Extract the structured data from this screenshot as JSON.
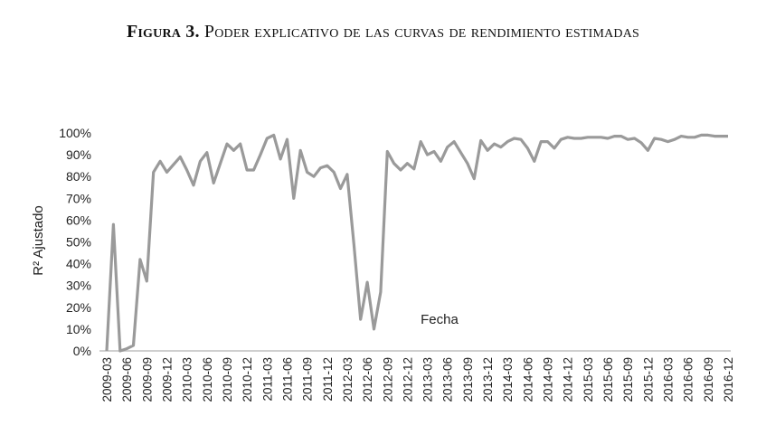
{
  "chart_data": {
    "type": "line",
    "title_prefix": "Figura 3.",
    "title": "Poder explicativo de las curvas de rendimiento estimadas",
    "xlabel": "Fecha",
    "ylabel": "R² Ajustado",
    "ylim": [
      0,
      100
    ],
    "y_ticks": [
      "0%",
      "10%",
      "20%",
      "30%",
      "40%",
      "50%",
      "60%",
      "70%",
      "80%",
      "90%",
      "100%"
    ],
    "x_start": "2009-03",
    "x_frequency": "monthly",
    "x_tick_labels": [
      "2009-03",
      "2009-06",
      "2009-09",
      "2009-12",
      "2010-03",
      "2010-06",
      "2010-09",
      "2010-12",
      "2011-03",
      "2011-06",
      "2011-09",
      "2011-12",
      "2012-03",
      "2012-06",
      "2012-09",
      "2012-12",
      "2013-03",
      "2013-06",
      "2013-09",
      "2013-12",
      "2014-03",
      "2014-06",
      "2014-09",
      "2014-12",
      "2015-03",
      "2015-06",
      "2015-09",
      "2015-12",
      "2016-03",
      "2016-06",
      "2016-09",
      "2016-12"
    ],
    "grid": false,
    "legend": "none",
    "series": [
      {
        "name": "R² Ajustado",
        "color": "#9a9a9a",
        "values": [
          0,
          58,
          0,
          1,
          2.5,
          42,
          32,
          82,
          87,
          82,
          85.5,
          89,
          83,
          76,
          87,
          91,
          77,
          86,
          95,
          92,
          95,
          83,
          83,
          90,
          97.5,
          99,
          88,
          97,
          70,
          92,
          82,
          80,
          84,
          85,
          82,
          74.5,
          81,
          49,
          14.5,
          31.5,
          10,
          27,
          91.5,
          86,
          83,
          86,
          83.5,
          96,
          90,
          91.5,
          87,
          93.5,
          96,
          91,
          86,
          79,
          96.5,
          92,
          95,
          93.5,
          96,
          97.5,
          97,
          93,
          87,
          96,
          96,
          93,
          97,
          98,
          97.5,
          97.5,
          98,
          98,
          98,
          97.5,
          98.5,
          98.5,
          97,
          97.5,
          95.5,
          92,
          97.5,
          97,
          96,
          97,
          98.5,
          98,
          98,
          99,
          99,
          98.5,
          98.5,
          98.5
        ]
      }
    ]
  }
}
